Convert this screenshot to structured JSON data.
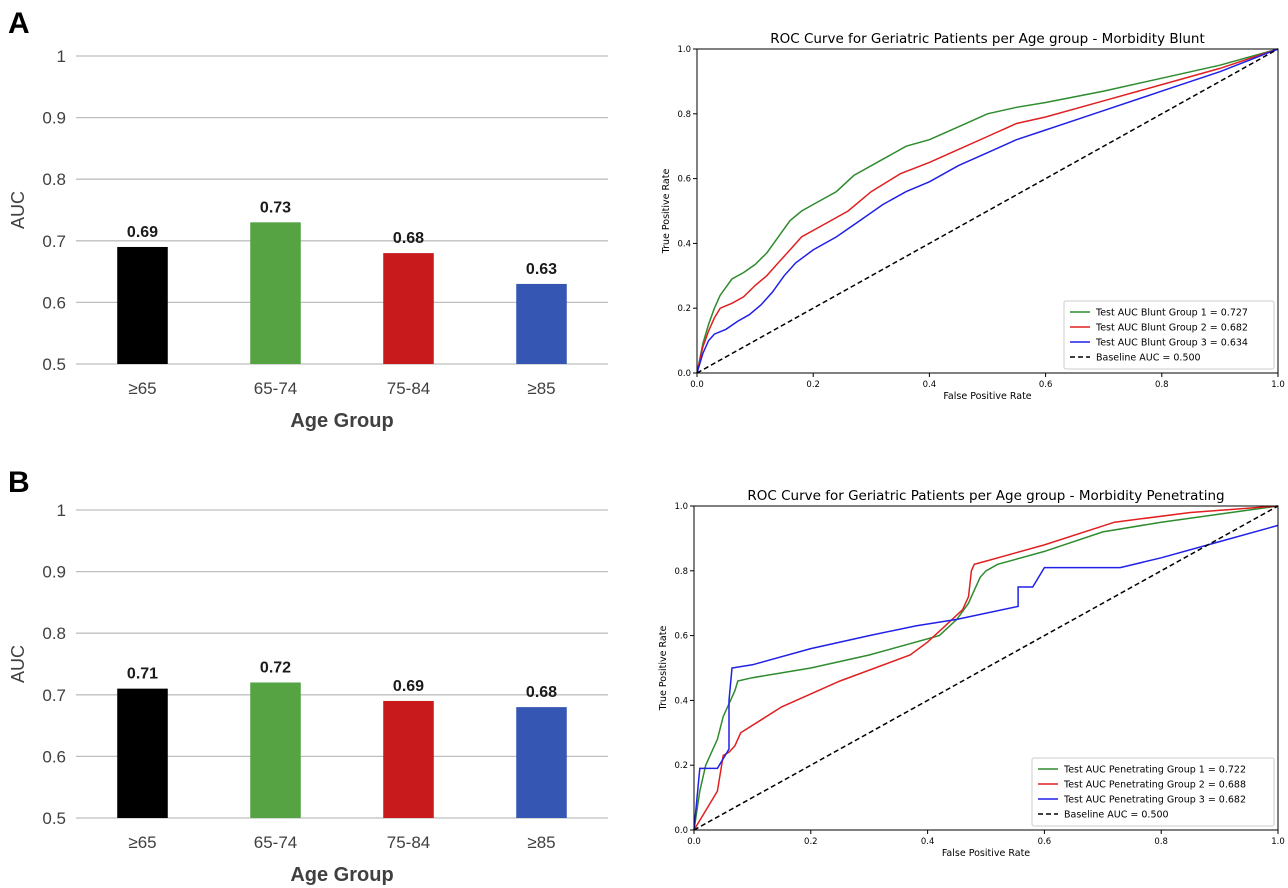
{
  "panels": [
    {
      "letter": "A"
    },
    {
      "letter": "B"
    }
  ],
  "chart_data": [
    {
      "type": "bar",
      "panel": "A",
      "title": "",
      "xlabel": "Age Group",
      "ylabel": "AUC",
      "ylim": [
        0.5,
        1.0
      ],
      "yticks": [
        "0.5",
        "0.6",
        "0.7",
        "0.8",
        "0.9",
        "1"
      ],
      "categories": [
        "≥65",
        "65-74",
        "75-84",
        "≥85"
      ],
      "values": [
        0.69,
        0.73,
        0.68,
        0.63
      ],
      "labels": [
        "0.69",
        "0.73",
        "0.68",
        "0.63"
      ],
      "colors": [
        "#000000",
        "#55a343",
        "#c8191d",
        "#3656b3"
      ],
      "grid": true,
      "legend": "none"
    },
    {
      "type": "line",
      "panel": "A",
      "title": "ROC Curve for Geriatric Patients per Age group - Morbidity Blunt",
      "xlabel": "False Positive Rate",
      "ylabel": "True Positive Rate",
      "xlim": [
        0,
        1
      ],
      "ylim": [
        0,
        1
      ],
      "xticks": [
        "0.0",
        "0.2",
        "0.4",
        "0.6",
        "0.8",
        "1.0"
      ],
      "yticks": [
        "0.0",
        "0.2",
        "0.4",
        "0.6",
        "0.8",
        "1.0"
      ],
      "legend": "lower-right",
      "grid": false,
      "series": [
        {
          "name": "Test AUC Blunt Group 1 = 0.727",
          "color": "#2e8b2e",
          "style": "solid",
          "points": [
            [
              0,
              0
            ],
            [
              0.01,
              0.09
            ],
            [
              0.02,
              0.15
            ],
            [
              0.03,
              0.2
            ],
            [
              0.04,
              0.24
            ],
            [
              0.06,
              0.29
            ],
            [
              0.08,
              0.31
            ],
            [
              0.1,
              0.335
            ],
            [
              0.12,
              0.37
            ],
            [
              0.14,
              0.42
            ],
            [
              0.16,
              0.47
            ],
            [
              0.18,
              0.5
            ],
            [
              0.2,
              0.52
            ],
            [
              0.24,
              0.56
            ],
            [
              0.27,
              0.61
            ],
            [
              0.32,
              0.66
            ],
            [
              0.36,
              0.7
            ],
            [
              0.4,
              0.72
            ],
            [
              0.45,
              0.76
            ],
            [
              0.5,
              0.8
            ],
            [
              0.55,
              0.82
            ],
            [
              0.6,
              0.835
            ],
            [
              0.7,
              0.87
            ],
            [
              0.8,
              0.91
            ],
            [
              0.9,
              0.95
            ],
            [
              1,
              1
            ]
          ]
        },
        {
          "name": "Test AUC Blunt Group 2 = 0.682",
          "color": "#e02020",
          "style": "solid",
          "points": [
            [
              0,
              0
            ],
            [
              0.01,
              0.08
            ],
            [
              0.02,
              0.13
            ],
            [
              0.03,
              0.17
            ],
            [
              0.04,
              0.2
            ],
            [
              0.06,
              0.215
            ],
            [
              0.08,
              0.235
            ],
            [
              0.1,
              0.27
            ],
            [
              0.12,
              0.3
            ],
            [
              0.14,
              0.34
            ],
            [
              0.16,
              0.38
            ],
            [
              0.18,
              0.42
            ],
            [
              0.22,
              0.46
            ],
            [
              0.26,
              0.5
            ],
            [
              0.3,
              0.56
            ],
            [
              0.35,
              0.615
            ],
            [
              0.4,
              0.65
            ],
            [
              0.45,
              0.69
            ],
            [
              0.5,
              0.73
            ],
            [
              0.55,
              0.77
            ],
            [
              0.6,
              0.79
            ],
            [
              0.7,
              0.84
            ],
            [
              0.8,
              0.89
            ],
            [
              0.9,
              0.94
            ],
            [
              1,
              1
            ]
          ]
        },
        {
          "name": "Test AUC Blunt Group 3 = 0.634",
          "color": "#2020e8",
          "style": "solid",
          "points": [
            [
              0,
              0
            ],
            [
              0.01,
              0.06
            ],
            [
              0.02,
              0.1
            ],
            [
              0.03,
              0.12
            ],
            [
              0.05,
              0.135
            ],
            [
              0.07,
              0.16
            ],
            [
              0.09,
              0.18
            ],
            [
              0.11,
              0.21
            ],
            [
              0.13,
              0.25
            ],
            [
              0.15,
              0.3
            ],
            [
              0.17,
              0.34
            ],
            [
              0.2,
              0.38
            ],
            [
              0.24,
              0.42
            ],
            [
              0.28,
              0.47
            ],
            [
              0.32,
              0.52
            ],
            [
              0.36,
              0.56
            ],
            [
              0.4,
              0.59
            ],
            [
              0.45,
              0.64
            ],
            [
              0.5,
              0.68
            ],
            [
              0.55,
              0.72
            ],
            [
              0.6,
              0.75
            ],
            [
              0.7,
              0.81
            ],
            [
              0.8,
              0.87
            ],
            [
              0.9,
              0.93
            ],
            [
              1,
              1
            ]
          ]
        },
        {
          "name": "Baseline AUC = 0.500",
          "color": "#000000",
          "style": "dashed",
          "points": [
            [
              0,
              0
            ],
            [
              1,
              1
            ]
          ]
        }
      ]
    },
    {
      "type": "bar",
      "panel": "B",
      "title": "",
      "xlabel": "Age Group",
      "ylabel": "AUC",
      "ylim": [
        0.5,
        1.0
      ],
      "yticks": [
        "0.5",
        "0.6",
        "0.7",
        "0.8",
        "0.9",
        "1"
      ],
      "categories": [
        "≥65",
        "65-74",
        "75-84",
        "≥85"
      ],
      "values": [
        0.71,
        0.72,
        0.69,
        0.68
      ],
      "labels": [
        "0.71",
        "0.72",
        "0.69",
        "0.68"
      ],
      "colors": [
        "#000000",
        "#55a343",
        "#c8191d",
        "#3656b3"
      ],
      "grid": true,
      "legend": "none"
    },
    {
      "type": "line",
      "panel": "B",
      "title": "ROC Curve for Geriatric Patients per Age group - Morbidity Penetrating",
      "xlabel": "False Positive Rate",
      "ylabel": "True Positive Rate",
      "xlim": [
        0,
        1
      ],
      "ylim": [
        0,
        1
      ],
      "xticks": [
        "0.0",
        "0.2",
        "0.4",
        "0.6",
        "0.8",
        "1.0"
      ],
      "yticks": [
        "0.0",
        "0.2",
        "0.4",
        "0.6",
        "0.8",
        "1.0"
      ],
      "legend": "lower-right",
      "grid": false,
      "series": [
        {
          "name": "Test AUC Penetrating Group 1 = 0.722",
          "color": "#2e8b2e",
          "style": "solid",
          "points": [
            [
              0,
              0
            ],
            [
              0.01,
              0.12
            ],
            [
              0.02,
              0.2
            ],
            [
              0.04,
              0.28
            ],
            [
              0.05,
              0.35
            ],
            [
              0.07,
              0.43
            ],
            [
              0.075,
              0.46
            ],
            [
              0.1,
              0.47
            ],
            [
              0.2,
              0.5
            ],
            [
              0.3,
              0.54
            ],
            [
              0.42,
              0.6
            ],
            [
              0.45,
              0.65
            ],
            [
              0.47,
              0.7
            ],
            [
              0.48,
              0.74
            ],
            [
              0.49,
              0.78
            ],
            [
              0.5,
              0.8
            ],
            [
              0.52,
              0.82
            ],
            [
              0.6,
              0.86
            ],
            [
              0.7,
              0.92
            ],
            [
              0.8,
              0.95
            ],
            [
              1,
              1
            ]
          ]
        },
        {
          "name": "Test AUC Penetrating Group 2 = 0.688",
          "color": "#e02020",
          "style": "solid",
          "points": [
            [
              0,
              0
            ],
            [
              0.02,
              0.06
            ],
            [
              0.04,
              0.12
            ],
            [
              0.05,
              0.23
            ],
            [
              0.06,
              0.24
            ],
            [
              0.07,
              0.26
            ],
            [
              0.08,
              0.3
            ],
            [
              0.15,
              0.38
            ],
            [
              0.25,
              0.46
            ],
            [
              0.37,
              0.54
            ],
            [
              0.4,
              0.58
            ],
            [
              0.43,
              0.63
            ],
            [
              0.46,
              0.68
            ],
            [
              0.47,
              0.72
            ],
            [
              0.475,
              0.8
            ],
            [
              0.48,
              0.82
            ],
            [
              0.5,
              0.83
            ],
            [
              0.6,
              0.88
            ],
            [
              0.72,
              0.95
            ],
            [
              0.85,
              0.98
            ],
            [
              1,
              1
            ]
          ]
        },
        {
          "name": "Test AUC Penetrating Group 3 = 0.682",
          "color": "#2020e8",
          "style": "solid",
          "points": [
            [
              0,
              0
            ],
            [
              0.01,
              0.19
            ],
            [
              0.04,
              0.19
            ],
            [
              0.05,
              0.22
            ],
            [
              0.06,
              0.25
            ],
            [
              0.06,
              0.4
            ],
            [
              0.065,
              0.5
            ],
            [
              0.1,
              0.51
            ],
            [
              0.2,
              0.56
            ],
            [
              0.3,
              0.6
            ],
            [
              0.38,
              0.63
            ],
            [
              0.45,
              0.65
            ],
            [
              0.555,
              0.69
            ],
            [
              0.555,
              0.75
            ],
            [
              0.58,
              0.75
            ],
            [
              0.6,
              0.81
            ],
            [
              0.73,
              0.81
            ],
            [
              0.8,
              0.84
            ],
            [
              0.9,
              0.89
            ],
            [
              1,
              0.94
            ]
          ]
        },
        {
          "name": "Baseline AUC = 0.500",
          "color": "#000000",
          "style": "dashed",
          "points": [
            [
              0,
              0
            ],
            [
              1,
              1
            ]
          ]
        }
      ]
    }
  ]
}
